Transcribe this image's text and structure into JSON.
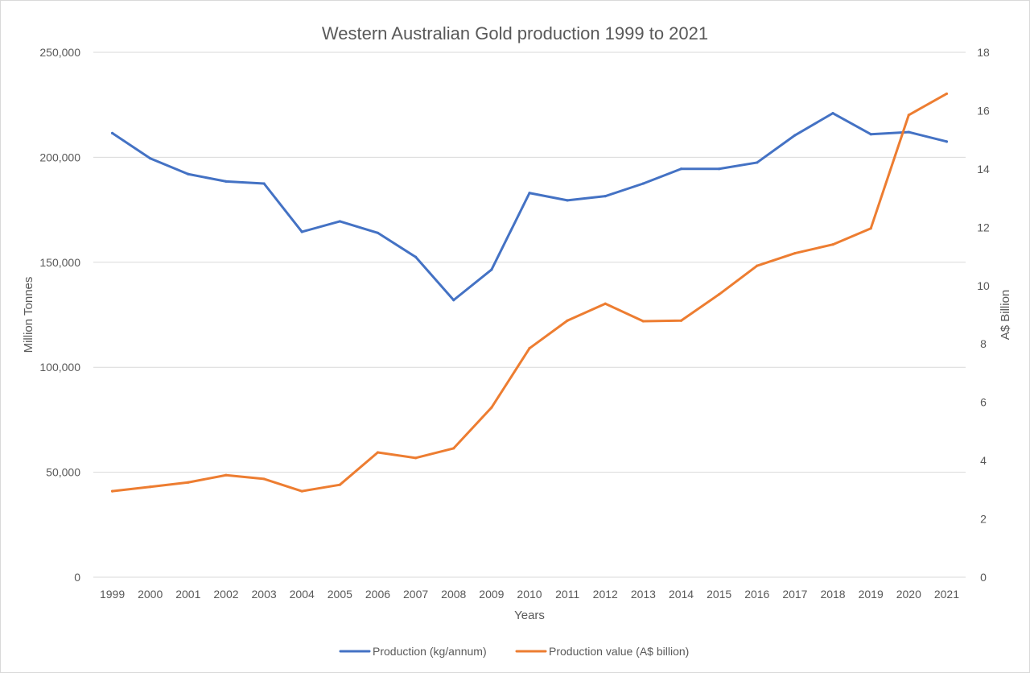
{
  "chart_data": {
    "type": "line",
    "title": "Western Australian Gold production 1999 to 2021",
    "xlabel": "Years",
    "ylabel": "Million Tonnes",
    "y2label": "A$ Billion",
    "categories": [
      "1999",
      "2000",
      "2001",
      "2002",
      "2003",
      "2004",
      "2005",
      "2006",
      "2007",
      "2008",
      "2009",
      "2010",
      "2011",
      "2012",
      "2013",
      "2014",
      "2015",
      "2016",
      "2017",
      "2018",
      "2019",
      "2020",
      "2021"
    ],
    "ylim": [
      0,
      250000
    ],
    "y_ticks": [
      0,
      50000,
      100000,
      150000,
      200000,
      250000
    ],
    "y_tick_labels": [
      "0",
      "50,000",
      "100,000",
      "150,000",
      "200,000",
      "250,000"
    ],
    "y2lim": [
      0,
      18
    ],
    "y2_ticks": [
      0,
      2,
      4,
      6,
      8,
      10,
      12,
      14,
      16,
      18
    ],
    "y2_tick_labels": [
      "0",
      "2",
      "4",
      "6",
      "8",
      "10",
      "12",
      "14",
      "16",
      "18"
    ],
    "grid": true,
    "legend_position": "bottom",
    "series": [
      {
        "name": "Production (kg/annum)",
        "axis": "left",
        "color": "#4472c4",
        "values": [
          211500,
          199500,
          192000,
          188500,
          187500,
          164500,
          169500,
          164000,
          152500,
          132000,
          146500,
          183000,
          179500,
          181500,
          187500,
          194500,
          194500,
          197500,
          210500,
          221000,
          211000,
          212000,
          207500
        ]
      },
      {
        "name": "Production value (A$ billion)",
        "axis": "right",
        "color": "#ed7d31",
        "values": [
          2.95,
          3.1,
          3.25,
          3.5,
          3.37,
          2.95,
          3.17,
          4.28,
          4.09,
          4.42,
          5.82,
          7.85,
          8.8,
          9.38,
          8.78,
          8.8,
          9.7,
          10.68,
          11.11,
          11.41,
          11.96,
          15.85,
          16.58
        ]
      }
    ]
  }
}
